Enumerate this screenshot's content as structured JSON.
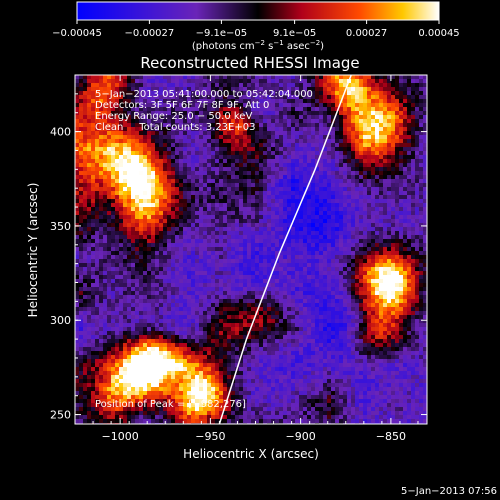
{
  "chart_data": {
    "type": "heatmap",
    "title": "Reconstructed RHESSI Image",
    "xlabel": "Heliocentric X (arcsec)",
    "ylabel": "Heliocentric Y (arcsec)",
    "xlim": [
      -1025,
      -830
    ],
    "ylim": [
      245,
      430
    ],
    "x_ticks": [
      -1000,
      -950,
      -900,
      -850
    ],
    "x_tick_labels": [
      "−1000",
      "−950",
      "−900",
      "−850"
    ],
    "y_ticks": [
      250,
      300,
      350,
      400
    ],
    "y_tick_labels": [
      "250",
      "300",
      "350",
      "400"
    ],
    "colorbar": {
      "range": [
        -0.00045,
        0.00045
      ],
      "ticks": [
        -0.00045,
        -0.00027,
        -9.1e-05,
        9.1e-05,
        0.00027,
        0.00045
      ],
      "tick_labels": [
        "−0.00045",
        "−0.00027",
        "−9.1e−05",
        "9.1e−05",
        "0.00027",
        "0.00045"
      ],
      "units_text": "(photons cm",
      "units_exp1": "−2",
      "units_mid": " s",
      "units_exp2": "−1",
      "units_end": " asec",
      "units_exp3": "−2",
      "units_close": ")"
    },
    "annotations": [
      "5−Jan−2013 05:41:00.000 to 05:42:04.000",
      "Detectors: 3F 5F 6F 7F 8F 9F, Att 0",
      "Energy Range: 25.0 − 50.0 keV",
      "Clean     Total counts: 3.23E+03"
    ],
    "peak_label": "Position of Peak = [−982,276]",
    "peak": [
      -982,
      276
    ],
    "limb_points": [
      [
        -945,
        245
      ],
      [
        -930,
        290
      ],
      [
        -912,
        335
      ],
      [
        -892,
        380
      ],
      [
        -872,
        430
      ]
    ],
    "hot_regions": [
      {
        "x": -1005,
        "y": 380,
        "w": 24,
        "strength": 1.0
      },
      {
        "x": -985,
        "y": 360,
        "w": 18,
        "strength": 0.9
      },
      {
        "x": -1010,
        "y": 420,
        "w": 14,
        "strength": 0.8
      },
      {
        "x": -982,
        "y": 276,
        "w": 16,
        "strength": 1.1
      },
      {
        "x": -1000,
        "y": 262,
        "w": 14,
        "strength": 0.8
      },
      {
        "x": -955,
        "y": 255,
        "w": 12,
        "strength": 0.8
      },
      {
        "x": -925,
        "y": 300,
        "w": 14,
        "strength": 0.7
      },
      {
        "x": -850,
        "y": 320,
        "w": 18,
        "strength": 1.0
      },
      {
        "x": -858,
        "y": 290,
        "w": 14,
        "strength": 0.9
      },
      {
        "x": -855,
        "y": 400,
        "w": 18,
        "strength": 0.9
      },
      {
        "x": -875,
        "y": 425,
        "w": 14,
        "strength": 0.7
      },
      {
        "x": -935,
        "y": 405,
        "w": 12,
        "strength": 0.5
      },
      {
        "x": -960,
        "y": 265,
        "w": 16,
        "strength": 0.6
      }
    ],
    "cold_regions": [
      {
        "x": -900,
        "y": 345,
        "w": 28,
        "strength": 1.0
      },
      {
        "x": -875,
        "y": 300,
        "w": 18,
        "strength": 0.7
      },
      {
        "x": -940,
        "y": 330,
        "w": 20,
        "strength": 0.6
      },
      {
        "x": -955,
        "y": 390,
        "w": 16,
        "strength": 0.6
      }
    ]
  },
  "footer": {
    "date": "5−Jan−2013 07:56"
  }
}
